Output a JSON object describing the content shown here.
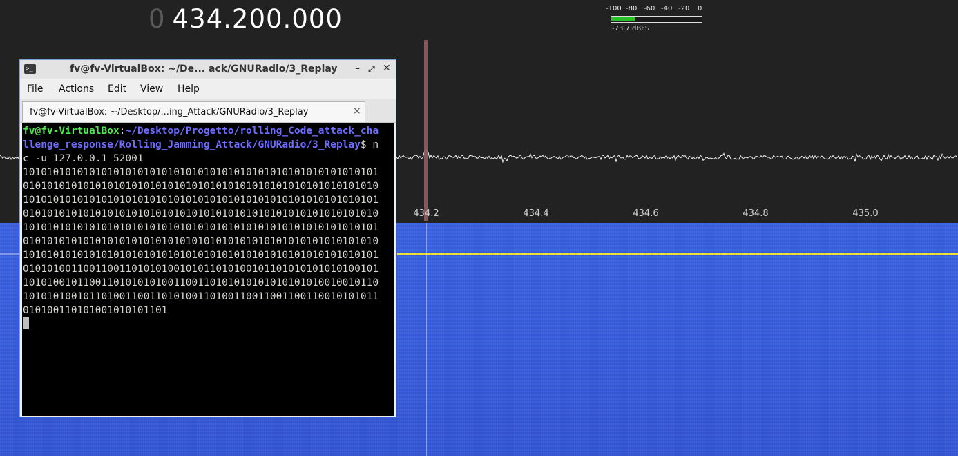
{
  "sdr": {
    "frequency_lead": "0",
    "frequency": "434.200.000",
    "meter_scale": [
      "-100",
      "-80",
      "-60",
      "-40",
      "-20",
      "0"
    ],
    "meter_level_dbfs": -73.7,
    "meter_readout": "-73.7 dBFS",
    "axis_ticks": [
      "434.2",
      "434.4",
      "434.6",
      "434.8",
      "435.0"
    ],
    "colors": {
      "background": "#222222",
      "waterfall": "#3a5fe0",
      "signal": "#f2e233",
      "meter": "#28c228"
    }
  },
  "terminal": {
    "title": "fv@fv-VirtualBox: ~/De... ack/GNURadio/3_Replay",
    "title_icon": "terminal-icon",
    "window_buttons": {
      "minimize": "–",
      "maximize": "⤢",
      "close": "✕"
    },
    "menu": [
      "File",
      "Actions",
      "Edit",
      "View",
      "Help"
    ],
    "tab_label": "fv@fv-VirtualBox: ~/Desktop/...ing_Attack/GNURadio/3_Replay",
    "tab_close": "×",
    "prompt_user": "fv@fv-VirtualBox",
    "prompt_colon": ":",
    "prompt_path": "~/Desktop/Progetto/rolling_Code_attack_challenge_response/Rolling_Jamming_Attack/GNURadio/3_Replay",
    "prompt_symbol": "$ ",
    "command": "nc -u 127.0.0.1 52001",
    "output": "10101010101010101010101010101010101010101010101010101010101010101010101010101010101010101010101010101010101010101010101010101010101010101010101010101010101010101010101010101010101010101010101010101010101010101010101010101010101010101010101010101010101010101010101010101010101010101010101010101010101010101010101010101010101010101010101010101010101010101010101010101010101010101010101010101010101010101010101010101010101001100110011010101001010110101001011010101010101001011010100101100110101010100110011010101010101010101001001011010101010010110100110011010100110100110011001100110010101011010100110101001010101101"
  }
}
